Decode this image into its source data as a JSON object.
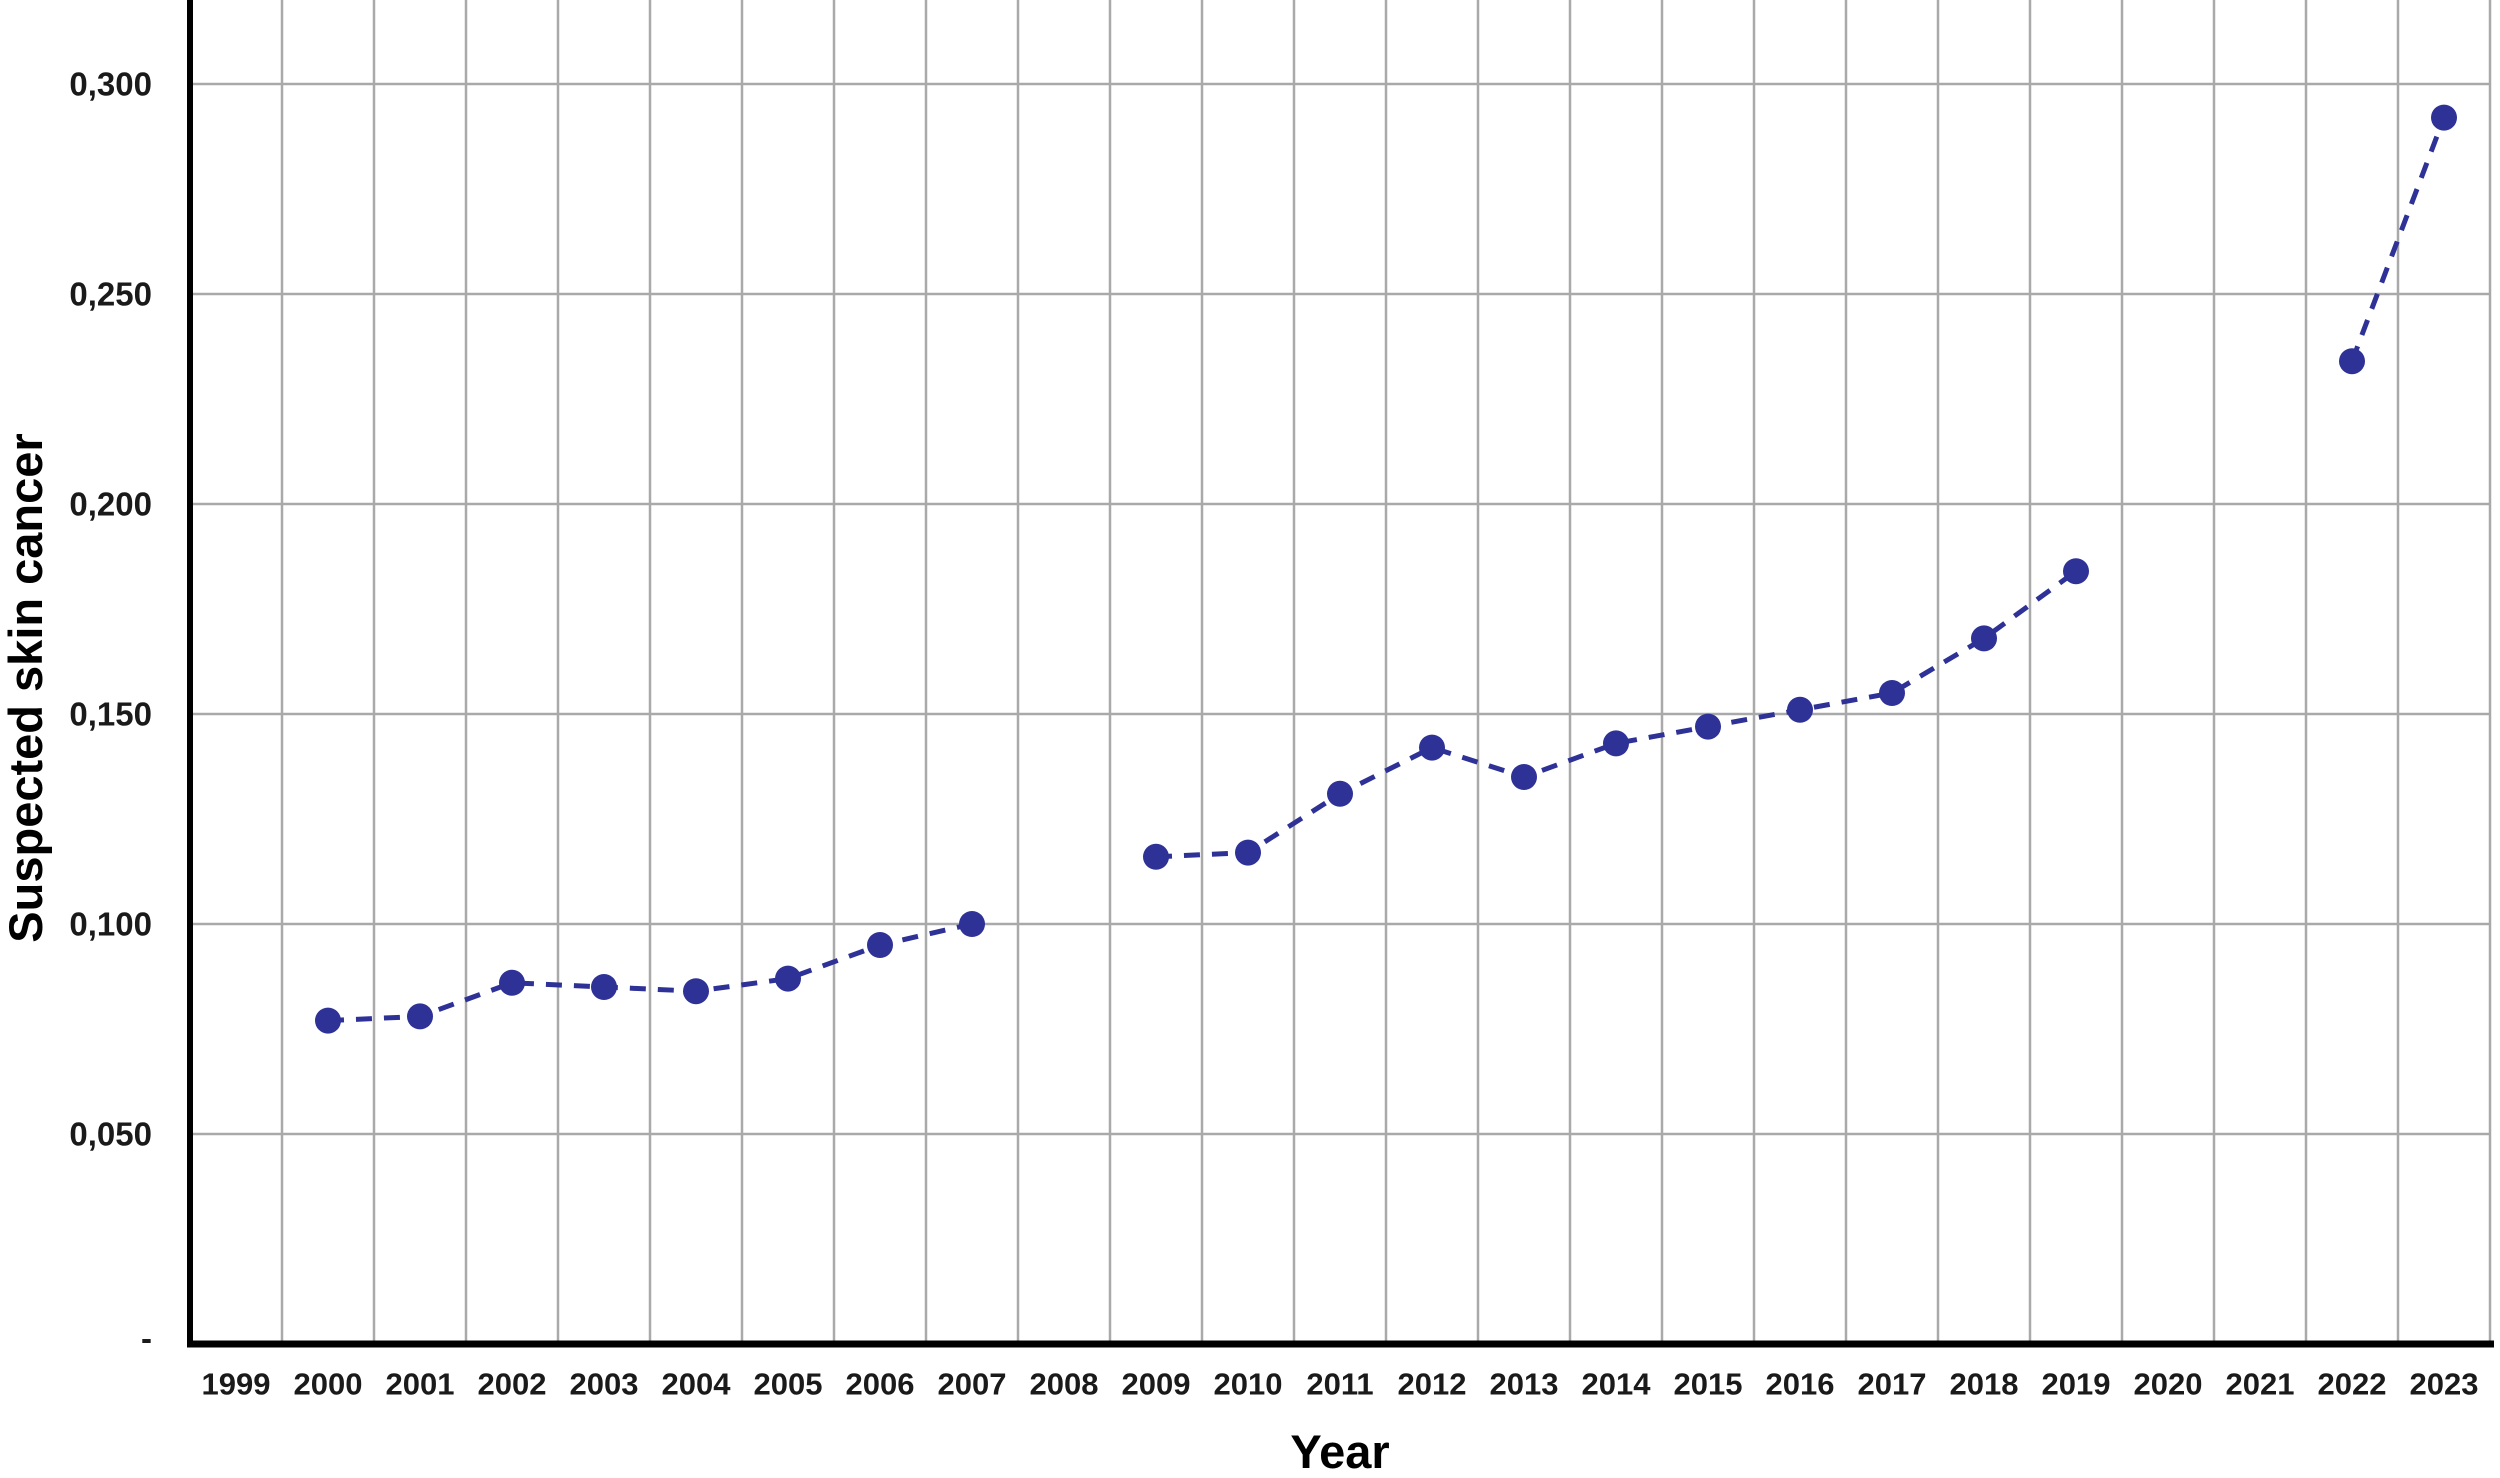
{
  "chart_data": {
    "type": "scatter",
    "title": "",
    "xlabel": "Year",
    "ylabel": "Suspected skin cancer",
    "x": [
      "1999",
      "2000",
      "2001",
      "2002",
      "2003",
      "2004",
      "2005",
      "2006",
      "2007",
      "2008",
      "2009",
      "2010",
      "2011",
      "2012",
      "2013",
      "2014",
      "2015",
      "2016",
      "2017",
      "2018",
      "2019",
      "2020",
      "2021",
      "2022",
      "2023"
    ],
    "series": [
      {
        "name": "Suspected skin cancer",
        "values": [
          null,
          0.077,
          0.078,
          0.086,
          0.085,
          0.084,
          0.087,
          0.095,
          0.1,
          null,
          0.116,
          0.117,
          0.131,
          0.142,
          0.135,
          0.143,
          0.147,
          0.151,
          0.155,
          0.168,
          0.184,
          null,
          null,
          0.234,
          0.292
        ]
      }
    ],
    "yticks": [
      {
        "value": 0.3,
        "label": "0,300"
      },
      {
        "value": 0.25,
        "label": "0,250"
      },
      {
        "value": 0.2,
        "label": "0,200"
      },
      {
        "value": 0.15,
        "label": "0,150"
      },
      {
        "value": 0.1,
        "label": "0,100"
      },
      {
        "value": 0.05,
        "label": "0,050"
      },
      {
        "value": 0.0,
        "label": "-"
      }
    ],
    "ylim": [
      0,
      0.32
    ],
    "grid": true,
    "legend_position": "none",
    "line_style": "dashed",
    "marker": "circle"
  },
  "colors": {
    "series_blue": "#2e3196",
    "gridline_gray": "#a9a9a9",
    "axis_black": "#000000",
    "label_dark": "#1a1a1a"
  }
}
